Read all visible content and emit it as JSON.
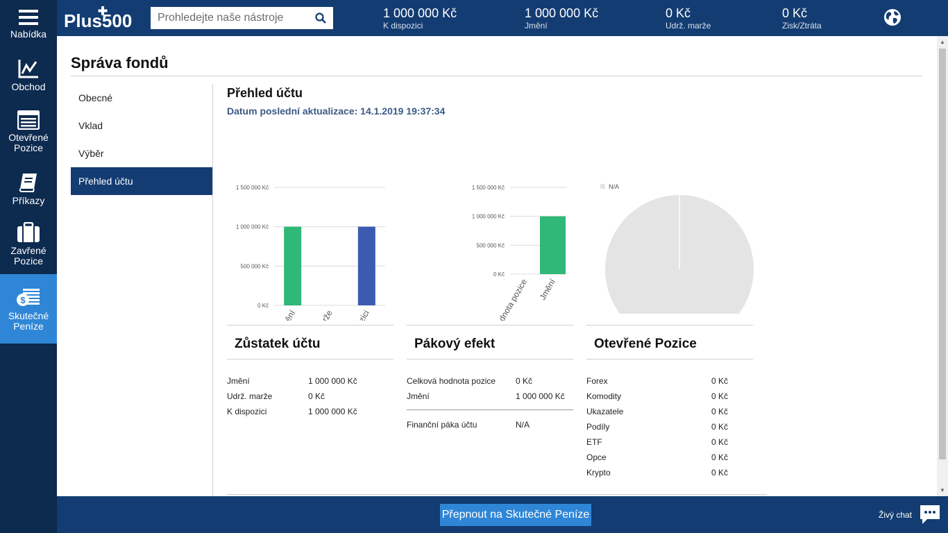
{
  "sidebar": {
    "items": [
      {
        "label1": "Nabídka",
        "label2": "",
        "icon": "hamburger-icon"
      },
      {
        "label1": "Obchod",
        "label2": "",
        "icon": "chart-line-icon"
      },
      {
        "label1": "Otevřené",
        "label2": "Pozice",
        "icon": "list-icon"
      },
      {
        "label1": "Příkazy",
        "label2": "",
        "icon": "book-icon"
      },
      {
        "label1": "Zavřené",
        "label2": "Pozice",
        "icon": "briefcase-icon"
      },
      {
        "label1": "Skutečné",
        "label2": "Peníze",
        "icon": "money-icon",
        "active": true
      }
    ]
  },
  "topbar": {
    "logo_text": "Plus500",
    "search_placeholder": "Prohledejte naše nástroje",
    "stats": [
      {
        "value": "1 000 000 Kč",
        "label": "K dispozici"
      },
      {
        "value": "1 000 000 Kč",
        "label": "Jmění"
      },
      {
        "value": "0 Kč",
        "label": "Udrž. marže"
      },
      {
        "value": "0 Kč",
        "label": "Zisk/Ztráta"
      }
    ]
  },
  "page": {
    "title": "Správa fondů",
    "menu": [
      "Obecné",
      "Vklad",
      "Výběr",
      "Přehled účtu"
    ],
    "active_menu": "Přehled účtu",
    "section_title": "Přehled účtu",
    "last_update": "Datum poslední aktualizace: 14.1.2019 19:37:34"
  },
  "chart_data": [
    {
      "type": "bar",
      "categories": [
        "Jmění",
        "Udrž. marže",
        "K dispozici"
      ],
      "values": [
        1000000,
        0,
        1000000
      ],
      "colors": [
        "#2fb877",
        "#2fb877",
        "#3a5bb0"
      ],
      "ylim": [
        0,
        1500000
      ],
      "yticks": [
        "0 Kč",
        "500 000 Kč",
        "1 000 000 Kč",
        "1 500 000 Kč"
      ]
    },
    {
      "type": "bar",
      "categories": [
        "Celková hodnota pozice",
        "Jmění"
      ],
      "values": [
        0,
        1000000
      ],
      "colors": [
        "#2fb877",
        "#2fb877"
      ],
      "ylim": [
        0,
        1500000
      ],
      "yticks": [
        "0 Kč",
        "500 000 Kč",
        "1 000 000 Kč",
        "1 500 000 Kč"
      ]
    },
    {
      "type": "pie",
      "legend": [
        "N/A"
      ],
      "values": [
        1
      ],
      "colors": [
        "#e4e4e4"
      ]
    }
  ],
  "cards": {
    "balance": {
      "title": "Zůstatek účtu",
      "rows": [
        {
          "label": "Jmění",
          "value": "1 000 000 Kč"
        },
        {
          "label": "Udrž. marže",
          "value": "0 Kč"
        },
        {
          "label": "K dispozici",
          "value": "1 000 000 Kč"
        }
      ]
    },
    "leverage": {
      "title": "Pákový efekt",
      "rows": [
        {
          "label": "Celková hodnota pozice",
          "value": "0 Kč"
        },
        {
          "label": "Jmění",
          "value": "1 000 000 Kč"
        }
      ],
      "extra": {
        "label": "Finanční páka účtu",
        "value": "N/A"
      }
    },
    "open_positions": {
      "title": "Otevřené Pozice",
      "rows": [
        {
          "label": "Forex",
          "value": "0 Kč"
        },
        {
          "label": "Komodity",
          "value": "0 Kč"
        },
        {
          "label": "Ukazatele",
          "value": "0 Kč"
        },
        {
          "label": "Podíly",
          "value": "0 Kč"
        },
        {
          "label": "ETF",
          "value": "0 Kč"
        },
        {
          "label": "Opce",
          "value": "0 Kč"
        },
        {
          "label": "Krypto",
          "value": "0 Kč"
        }
      ]
    }
  },
  "bottombar": {
    "switch_button": "Přepnout na Skutečné Peníze",
    "chat_label": "Živý chat"
  }
}
